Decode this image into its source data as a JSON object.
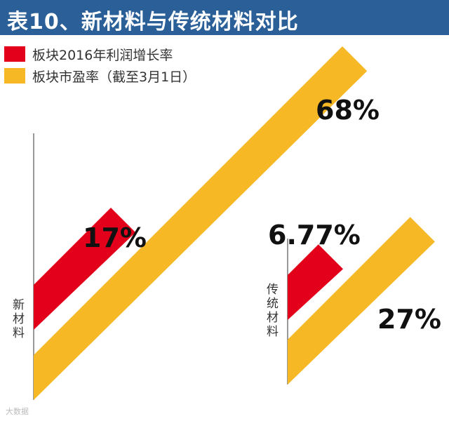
{
  "header": {
    "title": "表10、新材料与传统材料对比"
  },
  "chart_data": {
    "type": "bar",
    "categories": [
      "新材料",
      "传统材料"
    ],
    "series": [
      {
        "name": "板块2016年利润增长率",
        "values": [
          17,
          6.77
        ],
        "labels": [
          "17%",
          "6.77%"
        ],
        "color": "#e2001a"
      },
      {
        "name": "板块市盈率（截至3月1日）",
        "values": [
          68,
          27
        ],
        "labels": [
          "68%",
          "27%"
        ],
        "color": "#f6b824"
      }
    ],
    "legend": "top-left"
  },
  "watermark": "大数据"
}
